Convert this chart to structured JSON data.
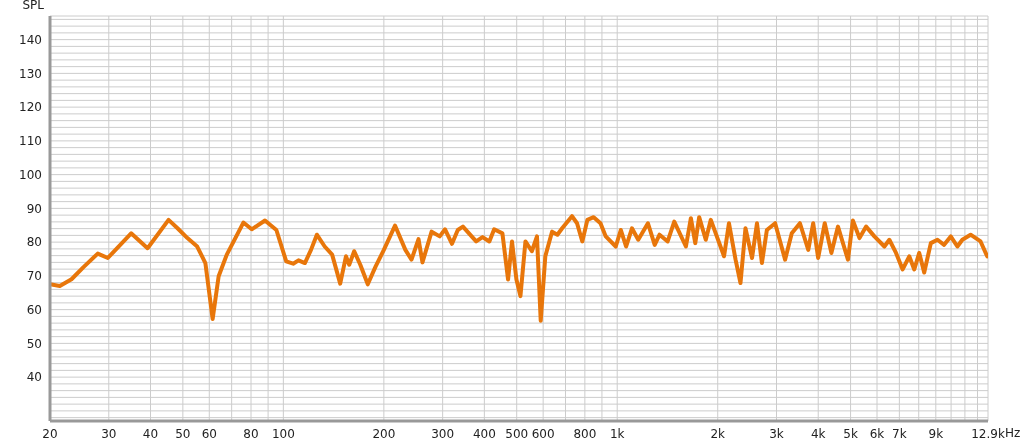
{
  "chart_data": {
    "type": "line",
    "ylabel": "SPL",
    "xlabel": "Hz",
    "log": "x",
    "xlim": [
      20,
      12900
    ],
    "ylim": [
      27,
      147
    ],
    "xticks": [
      20,
      30,
      40,
      50,
      60,
      {
        "value": 70,
        "label": null
      },
      80,
      {
        "value": 90,
        "label": null
      },
      100,
      200,
      300,
      400,
      500,
      600,
      {
        "value": 700,
        "label": null
      },
      800,
      {
        "value": 900,
        "label": null
      },
      {
        "value": 1000,
        "label": "1k"
      },
      {
        "value": 2000,
        "label": "2k"
      },
      {
        "value": 3000,
        "label": "3k"
      },
      {
        "value": 4000,
        "label": "4k"
      },
      {
        "value": 5000,
        "label": "5k"
      },
      {
        "value": 6000,
        "label": "6k"
      },
      {
        "value": 7000,
        "label": "7k"
      },
      {
        "value": 8000,
        "label": null
      },
      {
        "value": 9000,
        "label": "9k"
      },
      {
        "value": 10000,
        "label": null
      },
      {
        "value": 11000,
        "label": null
      },
      {
        "value": 12000,
        "label": null
      },
      {
        "value": 12900,
        "label": "12.9k"
      }
    ],
    "yticks": [
      {
        "value": 28,
        "label": null
      },
      {
        "value": 30,
        "label": null
      },
      {
        "value": 32,
        "label": null
      },
      {
        "value": 34,
        "label": null
      },
      {
        "value": 36,
        "label": null
      },
      {
        "value": 38,
        "label": null
      },
      40,
      {
        "value": 42,
        "label": null
      },
      {
        "value": 44,
        "label": null
      },
      {
        "value": 46,
        "label": null
      },
      {
        "value": 48,
        "label": null
      },
      50,
      {
        "value": 52,
        "label": null
      },
      {
        "value": 54,
        "label": null
      },
      {
        "value": 56,
        "label": null
      },
      {
        "value": 58,
        "label": null
      },
      60,
      {
        "value": 62,
        "label": null
      },
      {
        "value": 64,
        "label": null
      },
      {
        "value": 66,
        "label": null
      },
      {
        "value": 68,
        "label": null
      },
      70,
      {
        "value": 72,
        "label": null
      },
      {
        "value": 74,
        "label": null
      },
      {
        "value": 76,
        "label": null
      },
      {
        "value": 78,
        "label": null
      },
      80,
      {
        "value": 82,
        "label": null
      },
      {
        "value": 84,
        "label": null
      },
      {
        "value": 86,
        "label": null
      },
      {
        "value": 88,
        "label": null
      },
      90,
      {
        "value": 92,
        "label": null
      },
      {
        "value": 94,
        "label": null
      },
      {
        "value": 96,
        "label": null
      },
      {
        "value": 98,
        "label": null
      },
      100,
      {
        "value": 102,
        "label": null
      },
      {
        "value": 104,
        "label": null
      },
      {
        "value": 106,
        "label": null
      },
      {
        "value": 108,
        "label": null
      },
      110,
      {
        "value": 112,
        "label": null
      },
      {
        "value": 114,
        "label": null
      },
      {
        "value": 116,
        "label": null
      },
      {
        "value": 118,
        "label": null
      },
      120,
      {
        "value": 122,
        "label": null
      },
      {
        "value": 124,
        "label": null
      },
      {
        "value": 126,
        "label": null
      },
      {
        "value": 128,
        "label": null
      },
      130,
      {
        "value": 132,
        "label": null
      },
      {
        "value": 134,
        "label": null
      },
      {
        "value": 136,
        "label": null
      },
      {
        "value": 138,
        "label": null
      },
      140,
      {
        "value": 142,
        "label": null
      },
      {
        "value": 144,
        "label": null
      },
      {
        "value": 146,
        "label": null
      }
    ],
    "grid": true,
    "marker": "none",
    "line_style": "solid",
    "legend": false,
    "series": [
      {
        "color": "#e8760a",
        "x": [
          20,
          21.4,
          23.2,
          25.2,
          27.8,
          29.8,
          35,
          39.2,
          45.3,
          48.2,
          51.6,
          55.2,
          58.4,
          61.4,
          64,
          67.7,
          75.9,
          80.4,
          88.1,
          95.3,
          102,
          107,
          111,
          116,
          121,
          126,
          133,
          140,
          148,
          154,
          157.5,
          163,
          170,
          179,
          189,
          200,
          216,
          232,
          242,
          254,
          261,
          278,
          294,
          305,
          320,
          333,
          345,
          378,
          395,
          414,
          428,
          453,
          471,
          484,
          499,
          513,
          531,
          555,
          575,
          590,
          609,
          638,
          662,
          684,
          732,
          758,
          786,
          814,
          850,
          891,
          924,
          990,
          1025,
          1063,
          1107,
          1156,
          1236,
          1295,
          1339,
          1416,
          1482,
          1606,
          1662,
          1713,
          1760,
          1842,
          1907,
          2089,
          2161,
          2262,
          2340,
          2422,
          2534,
          2622,
          2713,
          2807,
          2972,
          3183,
          3333,
          3526,
          3735,
          3864,
          3998,
          4184,
          4380,
          4584,
          4910,
          5080,
          5317,
          5566,
          5893,
          6313,
          6533,
          6840,
          7160,
          7495,
          7757,
          8028,
          8308,
          8697,
          9104,
          9530,
          9977,
          10444,
          10808,
          11440,
          12254,
          12828
        ],
        "values": [
          67.5,
          67,
          69,
          72.6,
          76.6,
          75.3,
          82.6,
          78.2,
          86.6,
          84.1,
          81.2,
          78.7,
          73.8,
          57.2,
          69.9,
          76.3,
          85.8,
          83.8,
          86.4,
          83.6,
          74.3,
          73.6,
          74.6,
          73.8,
          77.7,
          82.2,
          78.7,
          76.3,
          67.7,
          75.8,
          73.3,
          77.3,
          73.3,
          67.5,
          72.8,
          77.7,
          84.9,
          77.7,
          74.8,
          80.9,
          74,
          83.1,
          81.7,
          83.8,
          79.5,
          83.6,
          84.6,
          80.2,
          81.5,
          80.2,
          83.8,
          82.6,
          68.9,
          80.2,
          68.9,
          64,
          80.2,
          77.3,
          81.7,
          56.7,
          75.8,
          83.1,
          82.2,
          84.1,
          87.7,
          85.6,
          80.2,
          86.6,
          87.4,
          85.6,
          81.7,
          78.7,
          83.6,
          78.7,
          84.1,
          80.7,
          85.6,
          79.2,
          82.2,
          80.2,
          86.1,
          78.7,
          87.1,
          79.7,
          87.4,
          80.7,
          86.6,
          75.8,
          85.6,
          74.8,
          67.9,
          84.1,
          75.3,
          85.6,
          73.8,
          83.6,
          85.6,
          74.8,
          82.6,
          85.6,
          77.7,
          85.6,
          75.3,
          85.6,
          76.8,
          84.6,
          74.8,
          86.4,
          81.2,
          84.6,
          81.7,
          78.7,
          80.7,
          76.8,
          71.9,
          75.8,
          71.9,
          76.8,
          71,
          79.7,
          80.7,
          79.2,
          81.7,
          78.7,
          80.7,
          82.2,
          80.2,
          75.8
        ]
      }
    ]
  }
}
